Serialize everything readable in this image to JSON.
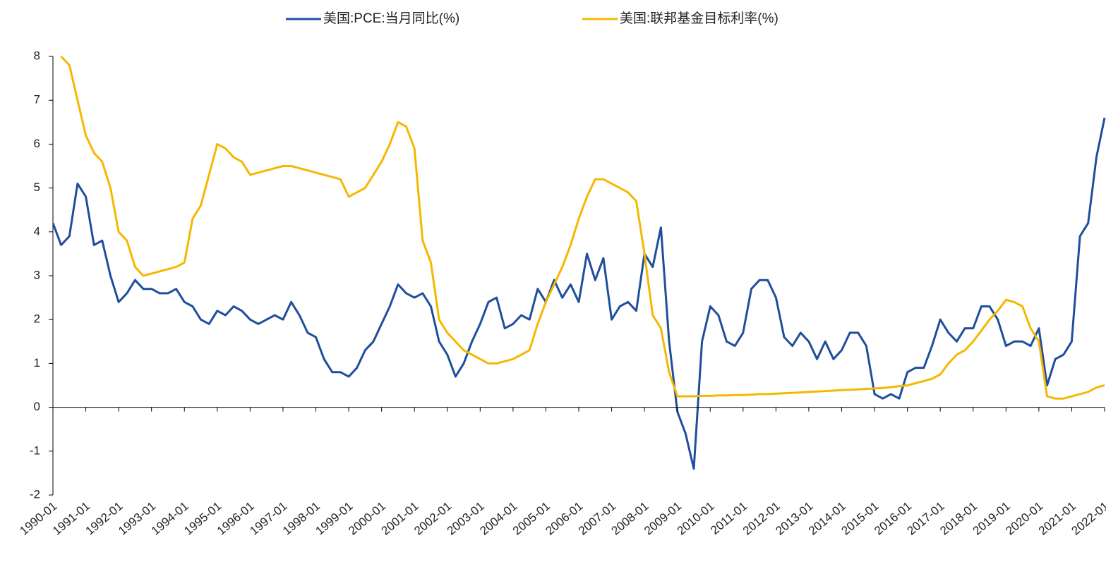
{
  "chart_data": {
    "type": "line",
    "x": [
      "1990-01",
      "1990-04",
      "1990-07",
      "1990-10",
      "1991-01",
      "1991-04",
      "1991-07",
      "1991-10",
      "1992-01",
      "1992-04",
      "1992-07",
      "1992-10",
      "1993-01",
      "1993-04",
      "1993-07",
      "1993-10",
      "1994-01",
      "1994-04",
      "1994-07",
      "1994-10",
      "1995-01",
      "1995-04",
      "1995-07",
      "1995-10",
      "1996-01",
      "1996-04",
      "1996-07",
      "1996-10",
      "1997-01",
      "1997-04",
      "1997-07",
      "1997-10",
      "1998-01",
      "1998-04",
      "1998-07",
      "1998-10",
      "1999-01",
      "1999-04",
      "1999-07",
      "1999-10",
      "2000-01",
      "2000-04",
      "2000-07",
      "2000-10",
      "2001-01",
      "2001-04",
      "2001-07",
      "2001-10",
      "2002-01",
      "2002-04",
      "2002-07",
      "2002-10",
      "2003-01",
      "2003-04",
      "2003-07",
      "2003-10",
      "2004-01",
      "2004-04",
      "2004-07",
      "2004-10",
      "2005-01",
      "2005-04",
      "2005-07",
      "2005-10",
      "2006-01",
      "2006-04",
      "2006-07",
      "2006-10",
      "2007-01",
      "2007-04",
      "2007-07",
      "2007-10",
      "2008-01",
      "2008-04",
      "2008-07",
      "2008-10",
      "2009-01",
      "2009-04",
      "2009-07",
      "2009-10",
      "2010-01",
      "2010-04",
      "2010-07",
      "2010-10",
      "2011-01",
      "2011-04",
      "2011-07",
      "2011-10",
      "2012-01",
      "2012-04",
      "2012-07",
      "2012-10",
      "2013-01",
      "2013-04",
      "2013-07",
      "2013-10",
      "2014-01",
      "2014-04",
      "2014-07",
      "2014-10",
      "2015-01",
      "2015-04",
      "2015-07",
      "2015-10",
      "2016-01",
      "2016-04",
      "2016-07",
      "2016-10",
      "2017-01",
      "2017-04",
      "2017-07",
      "2017-10",
      "2018-01",
      "2018-04",
      "2018-07",
      "2018-10",
      "2019-01",
      "2019-04",
      "2019-07",
      "2019-10",
      "2020-01",
      "2020-04",
      "2020-07",
      "2020-10",
      "2021-01",
      "2021-04",
      "2021-07",
      "2021-10",
      "2022-01"
    ],
    "series": [
      {
        "name": "美国:PCE:当月同比(%)",
        "color": "#1f4e9c",
        "values": [
          4.2,
          3.7,
          3.9,
          5.1,
          4.8,
          3.7,
          3.8,
          3.0,
          2.4,
          2.6,
          2.9,
          2.7,
          2.7,
          2.6,
          2.6,
          2.7,
          2.4,
          2.3,
          2.0,
          1.9,
          2.2,
          2.1,
          2.3,
          2.2,
          2.0,
          1.9,
          2.0,
          2.1,
          2.0,
          2.4,
          2.1,
          1.7,
          1.6,
          1.1,
          0.8,
          0.8,
          0.7,
          0.9,
          1.3,
          1.5,
          1.9,
          2.3,
          2.8,
          2.6,
          2.5,
          2.6,
          2.3,
          1.5,
          1.2,
          0.7,
          1.0,
          1.5,
          1.9,
          2.4,
          2.5,
          1.8,
          1.9,
          2.1,
          2.0,
          2.7,
          2.4,
          2.9,
          2.5,
          2.8,
          2.4,
          3.5,
          2.9,
          3.4,
          2.0,
          2.3,
          2.4,
          2.2,
          3.5,
          3.2,
          4.1,
          1.5,
          -0.1,
          -0.6,
          -1.4,
          1.5,
          2.3,
          2.1,
          1.5,
          1.4,
          1.7,
          2.7,
          2.9,
          2.9,
          2.5,
          1.6,
          1.4,
          1.7,
          1.5,
          1.1,
          1.5,
          1.1,
          1.3,
          1.7,
          1.7,
          1.4,
          0.3,
          0.2,
          0.3,
          0.2,
          0.8,
          0.9,
          0.9,
          1.4,
          2.0,
          1.7,
          1.5,
          1.8,
          1.8,
          2.3,
          2.3,
          2.0,
          1.4,
          1.5,
          1.5,
          1.4,
          1.8,
          0.5,
          1.1,
          1.2,
          1.5,
          3.9,
          4.2,
          5.7,
          6.6
        ]
      },
      {
        "name": "美国:联邦基金目标利率(%)",
        "color": "#f5b800",
        "values": [
          8.2,
          8.0,
          7.8,
          7.0,
          6.2,
          5.8,
          5.6,
          5.0,
          4.0,
          3.8,
          3.2,
          3.0,
          3.05,
          3.1,
          3.15,
          3.2,
          3.3,
          4.3,
          4.6,
          5.3,
          6.0,
          5.9,
          5.7,
          5.6,
          5.3,
          5.35,
          5.4,
          5.45,
          5.5,
          5.5,
          5.45,
          5.4,
          5.35,
          5.3,
          5.25,
          5.2,
          4.8,
          4.9,
          5.0,
          5.3,
          5.6,
          6.0,
          6.5,
          6.4,
          5.9,
          3.8,
          3.3,
          2.0,
          1.7,
          1.5,
          1.3,
          1.2,
          1.1,
          1.0,
          1.0,
          1.05,
          1.1,
          1.2,
          1.3,
          1.9,
          2.4,
          2.8,
          3.2,
          3.7,
          4.3,
          4.8,
          5.2,
          5.2,
          5.1,
          5.0,
          4.9,
          4.7,
          3.5,
          2.1,
          1.8,
          0.8,
          0.25,
          0.25,
          0.25,
          0.26,
          0.26,
          0.27,
          0.27,
          0.28,
          0.28,
          0.29,
          0.3,
          0.3,
          0.31,
          0.32,
          0.33,
          0.34,
          0.35,
          0.36,
          0.37,
          0.38,
          0.39,
          0.4,
          0.41,
          0.42,
          0.43,
          0.44,
          0.46,
          0.48,
          0.5,
          0.55,
          0.6,
          0.65,
          0.75,
          1.0,
          1.2,
          1.3,
          1.5,
          1.75,
          2.0,
          2.2,
          2.45,
          2.4,
          2.3,
          1.8,
          1.5,
          0.25,
          0.2,
          0.2,
          0.25,
          0.3,
          0.35,
          0.45,
          0.5
        ]
      }
    ],
    "xlim": [
      "1990-01",
      "2022-01"
    ],
    "xticks": [
      "1990-01",
      "1991-01",
      "1992-01",
      "1993-01",
      "1994-01",
      "1995-01",
      "1996-01",
      "1997-01",
      "1998-01",
      "1999-01",
      "2000-01",
      "2001-01",
      "2002-01",
      "2003-01",
      "2004-01",
      "2005-01",
      "2006-01",
      "2007-01",
      "2008-01",
      "2009-01",
      "2010-01",
      "2011-01",
      "2012-01",
      "2013-01",
      "2014-01",
      "2015-01",
      "2016-01",
      "2017-01",
      "2018-01",
      "2019-01",
      "2020-01",
      "2021-01",
      "2022-01"
    ],
    "ylim": [
      -2,
      8
    ],
    "yticks": [
      -2,
      -1,
      0,
      1,
      2,
      3,
      4,
      5,
      6,
      7,
      8
    ],
    "grid": false,
    "legend": "top"
  }
}
